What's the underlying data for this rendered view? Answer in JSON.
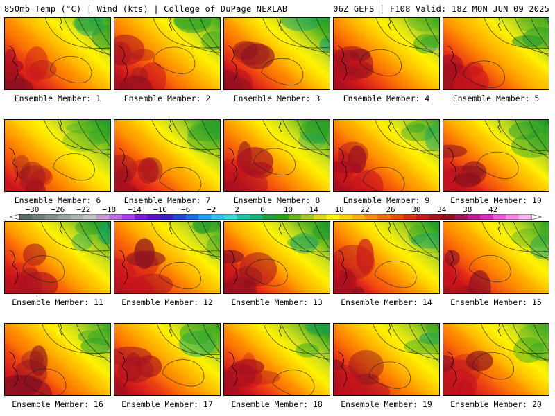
{
  "header": {
    "left": "850mb Temp (°C) | Wind (kts) | College of DuPage NEXLAB",
    "right": "06Z GEFS | F108 Valid: 18Z MON JUN 09 2025"
  },
  "member_prefix": "Ensemble Member: ",
  "members": [
    {
      "label": "Ensemble Member: 1",
      "warm": 0.55,
      "cool": 0.45,
      "seed": 1
    },
    {
      "label": "Ensemble Member: 2",
      "warm": 0.6,
      "cool": 0.4,
      "seed": 2
    },
    {
      "label": "Ensemble Member: 3",
      "warm": 0.65,
      "cool": 0.5,
      "seed": 3
    },
    {
      "label": "Ensemble Member: 4",
      "warm": 0.6,
      "cool": 0.45,
      "seed": 4
    },
    {
      "label": "Ensemble Member: 5",
      "warm": 0.7,
      "cool": 0.35,
      "seed": 5
    },
    {
      "label": "Ensemble Member: 6",
      "warm": 0.45,
      "cool": 0.55,
      "seed": 6
    },
    {
      "label": "Ensemble Member: 7",
      "warm": 0.55,
      "cool": 0.6,
      "seed": 7
    },
    {
      "label": "Ensemble Member: 8",
      "warm": 0.6,
      "cool": 0.5,
      "seed": 8
    },
    {
      "label": "Ensemble Member: 9",
      "warm": 0.7,
      "cool": 0.4,
      "seed": 9
    },
    {
      "label": "Ensemble Member: 10",
      "warm": 0.65,
      "cool": 0.6,
      "seed": 10
    },
    {
      "label": "Ensemble Member: 11",
      "warm": 0.55,
      "cool": 0.55,
      "seed": 11
    },
    {
      "label": "Ensemble Member: 12",
      "warm": 0.7,
      "cool": 0.3,
      "seed": 12
    },
    {
      "label": "Ensemble Member: 13",
      "warm": 0.55,
      "cool": 0.55,
      "seed": 13
    },
    {
      "label": "Ensemble Member: 14",
      "warm": 0.6,
      "cool": 0.5,
      "seed": 14
    },
    {
      "label": "Ensemble Member: 15",
      "warm": 0.65,
      "cool": 0.45,
      "seed": 15
    },
    {
      "label": "Ensemble Member: 16",
      "warm": 0.6,
      "cool": 0.45,
      "seed": 16
    },
    {
      "label": "Ensemble Member: 17",
      "warm": 0.75,
      "cool": 0.3,
      "seed": 17
    },
    {
      "label": "Ensemble Member: 18",
      "warm": 0.55,
      "cool": 0.5,
      "seed": 18
    },
    {
      "label": "Ensemble Member: 19",
      "warm": 0.7,
      "cool": 0.45,
      "seed": 19
    },
    {
      "label": "Ensemble Member: 20",
      "warm": 0.75,
      "cool": 0.4,
      "seed": 20
    }
  ],
  "colorbar": {
    "tick_labels": [
      "-30",
      "-26",
      "-22",
      "-18",
      "-14",
      "-10",
      "-6",
      "-2",
      "2",
      "6",
      "10",
      "14",
      "18",
      "22",
      "26",
      "30",
      "34",
      "38",
      "42"
    ],
    "colors": [
      "#5f6f66",
      "#707f77",
      "#85928b",
      "#97a29c",
      "#a9b2ad",
      "#c1c3c2",
      "#c79ad0",
      "#c06be0",
      "#a83ff0",
      "#7d19e6",
      "#5a12d8",
      "#3d1fd2",
      "#2147e0",
      "#1e6cf0",
      "#1ea2ff",
      "#26c8f4",
      "#2fe0d6",
      "#18c8a2",
      "#16b37c",
      "#1fa040",
      "#2ca21e",
      "#65b51a",
      "#a8c818",
      "#ddd914",
      "#fff400",
      "#ffd300",
      "#ffb000",
      "#ff8e00",
      "#ff6a00",
      "#f04a00",
      "#e52a10",
      "#d0181a",
      "#b0101a",
      "#941018",
      "#a01858",
      "#c01c98",
      "#dc2cc2",
      "#ee5ad6",
      "#f886e4",
      "#f8b4ee"
    ]
  },
  "palette": {
    "temp_ramp": [
      "#8a1020",
      "#a81020",
      "#c8141c",
      "#e0281a",
      "#f04a10",
      "#fa6e06",
      "#ff9200",
      "#ffb400",
      "#ffd400",
      "#fff200",
      "#d8e418",
      "#a6d020",
      "#6cbc20",
      "#3aa824",
      "#1e9a2e",
      "#12a46a"
    ]
  }
}
